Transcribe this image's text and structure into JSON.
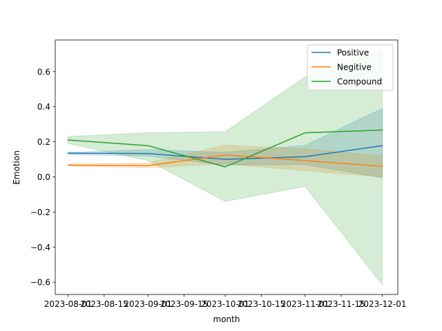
{
  "chart_data": {
    "type": "line",
    "title": "",
    "xlabel": "month",
    "ylabel": "Emotion",
    "x": [
      "2023-08-01",
      "2023-09-01",
      "2023-10-01",
      "2023-11-01",
      "2023-12-01"
    ],
    "x_ticks": [
      "2023-08-01",
      "2023-08-15",
      "2023-09-01",
      "2023-09-15",
      "2023-10-01",
      "2023-10-15",
      "2023-11-01",
      "2023-11-15",
      "2023-12-01"
    ],
    "x_range": [
      "2023-07-27",
      "2023-12-07"
    ],
    "ylim": [
      -0.67,
      0.78
    ],
    "y_ticks": [
      -0.6,
      -0.4,
      -0.2,
      0.0,
      0.2,
      0.4,
      0.6
    ],
    "y_tick_labels": [
      "−0.6",
      "−0.4",
      "−0.2",
      "0.0",
      "0.2",
      "0.4",
      "0.6"
    ],
    "grid": false,
    "legend_position": "top-right",
    "series": [
      {
        "name": "Positive",
        "color": "#1f77b4",
        "values": [
          0.135,
          0.133,
          0.1,
          0.115,
          0.178
        ],
        "ci_low": [
          0.127,
          0.118,
          0.068,
          0.07,
          -0.005
        ],
        "ci_high": [
          0.14,
          0.155,
          0.14,
          0.18,
          0.39
        ]
      },
      {
        "name": "Negitive",
        "color": "#ff7f0e",
        "values": [
          0.067,
          0.064,
          0.125,
          0.093,
          0.06
        ],
        "ci_low": [
          0.062,
          0.052,
          0.075,
          0.035,
          0.0
        ],
        "ci_high": [
          0.073,
          0.08,
          0.18,
          0.16,
          0.12
        ]
      },
      {
        "name": "Compound",
        "color": "#2ca02c",
        "values": [
          0.21,
          0.178,
          0.057,
          0.251,
          0.267
        ],
        "ci_low": [
          0.19,
          0.093,
          -0.14,
          -0.055,
          -0.615
        ],
        "ci_high": [
          0.23,
          0.252,
          0.257,
          0.57,
          0.72
        ]
      }
    ]
  }
}
